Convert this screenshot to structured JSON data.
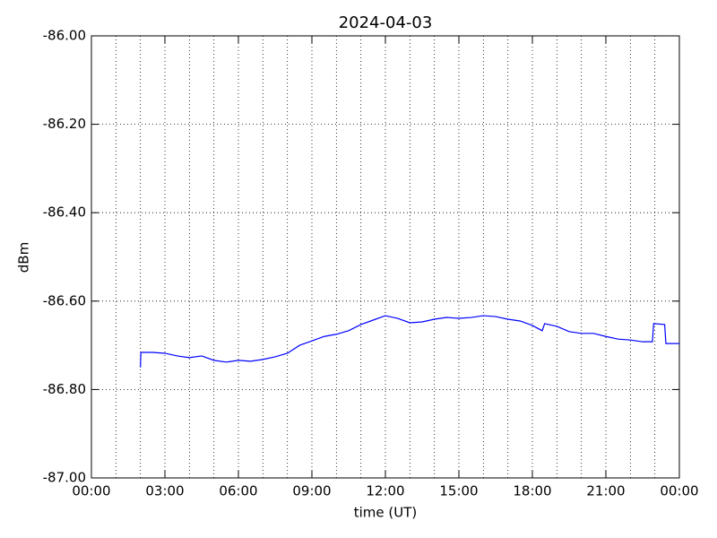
{
  "chart_data": {
    "type": "line",
    "title": "2024-04-03",
    "xlabel": "time (UT)",
    "ylabel": "dBm",
    "color": "#0000ff",
    "grid": true,
    "x": [
      2.0,
      2.02,
      2.5,
      3.0,
      3.5,
      4.0,
      4.5,
      5.0,
      5.5,
      6.0,
      6.5,
      7.0,
      7.5,
      8.0,
      8.5,
      9.0,
      9.5,
      10.0,
      10.5,
      11.0,
      11.5,
      12.0,
      12.5,
      13.0,
      13.5,
      14.0,
      14.5,
      15.0,
      15.5,
      16.0,
      16.5,
      17.0,
      17.5,
      18.0,
      18.4,
      18.5,
      19.0,
      19.5,
      20.0,
      20.5,
      21.0,
      21.5,
      22.0,
      22.5,
      22.9,
      22.95,
      23.4,
      23.45,
      24.0
    ],
    "values": [
      -86.75,
      -86.716,
      -86.716,
      -86.718,
      -86.724,
      -86.728,
      -86.724,
      -86.734,
      -86.738,
      -86.734,
      -86.736,
      -86.732,
      -86.726,
      -86.718,
      -86.7,
      -86.69,
      -86.68,
      -86.675,
      -86.667,
      -86.653,
      -86.643,
      -86.633,
      -86.639,
      -86.649,
      -86.647,
      -86.641,
      -86.637,
      -86.639,
      -86.637,
      -86.633,
      -86.635,
      -86.641,
      -86.645,
      -86.655,
      -86.667,
      -86.651,
      -86.657,
      -86.669,
      -86.673,
      -86.673,
      -86.68,
      -86.686,
      -86.688,
      -86.692,
      -86.692,
      -86.651,
      -86.653,
      -86.696,
      -86.696
    ],
    "xlim": [
      0,
      24
    ],
    "xticks": [
      {
        "value": 0,
        "label": "00:00"
      },
      {
        "value": 3,
        "label": "03:00"
      },
      {
        "value": 6,
        "label": "06:00"
      },
      {
        "value": 9,
        "label": "09:00"
      },
      {
        "value": 12,
        "label": "12:00"
      },
      {
        "value": 15,
        "label": "15:00"
      },
      {
        "value": 18,
        "label": "18:00"
      },
      {
        "value": 21,
        "label": "21:00"
      },
      {
        "value": 24,
        "label": "00:00"
      }
    ],
    "xminorticks": [
      1,
      2,
      4,
      5,
      7,
      8,
      10,
      11,
      13,
      14,
      16,
      17,
      19,
      20,
      22,
      23
    ],
    "ylim": [
      -87,
      -86
    ],
    "yticks": [
      {
        "value": -87,
        "label": "-87.00"
      },
      {
        "value": -86.8,
        "label": "-86.80"
      },
      {
        "value": -86.6,
        "label": "-86.60"
      },
      {
        "value": -86.4,
        "label": "-86.40"
      },
      {
        "value": -86.2,
        "label": "-86.20"
      },
      {
        "value": -86,
        "label": "-86.00"
      }
    ]
  }
}
